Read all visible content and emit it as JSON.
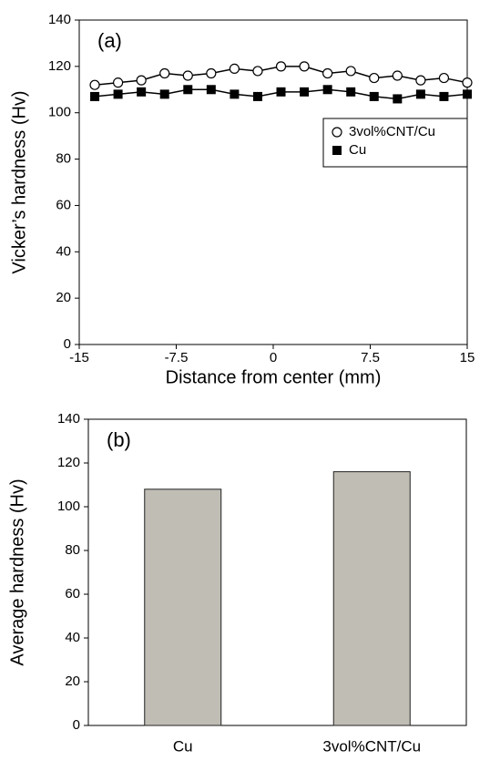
{
  "chart_data": [
    {
      "type": "line",
      "annotation": "(a)",
      "x_label": "Distance from center (mm)",
      "y_label": "Vicker’s hardness (Hv)",
      "x": [
        -13.8,
        -12.0,
        -10.2,
        -8.4,
        -6.6,
        -4.8,
        -3.0,
        -1.2,
        0.6,
        2.4,
        4.2,
        6.0,
        7.8,
        9.6,
        11.4,
        13.2,
        15.0
      ],
      "series": [
        {
          "name": "3vol%CNT/Cu",
          "marker": "circle",
          "color": "#000000",
          "values": [
            112,
            113,
            114,
            117,
            116,
            117,
            119,
            118,
            120,
            120,
            117,
            118,
            115,
            116,
            114,
            115,
            113
          ]
        },
        {
          "name": "Cu",
          "marker": "square",
          "color": "#000000",
          "values": [
            107,
            108,
            109,
            108,
            110,
            110,
            108,
            107,
            109,
            109,
            110,
            109,
            107,
            106,
            108,
            107,
            108
          ]
        }
      ],
      "xlim": [
        -15,
        15
      ],
      "xticks": [
        -15,
        -7.5,
        0,
        7.5,
        15
      ],
      "ylim": [
        0,
        140
      ],
      "yticks": [
        0,
        20,
        40,
        60,
        80,
        100,
        120,
        140
      ],
      "legend": "upper right"
    },
    {
      "type": "bar",
      "annotation": "(b)",
      "y_label": "Average hardness (Hv)",
      "categories": [
        "Cu",
        "3vol%CNT/Cu"
      ],
      "values": [
        108,
        116
      ],
      "color": "#c0bdb5",
      "ylim": [
        0,
        140
      ],
      "yticks": [
        0,
        20,
        40,
        60,
        80,
        100,
        120,
        140
      ]
    }
  ]
}
